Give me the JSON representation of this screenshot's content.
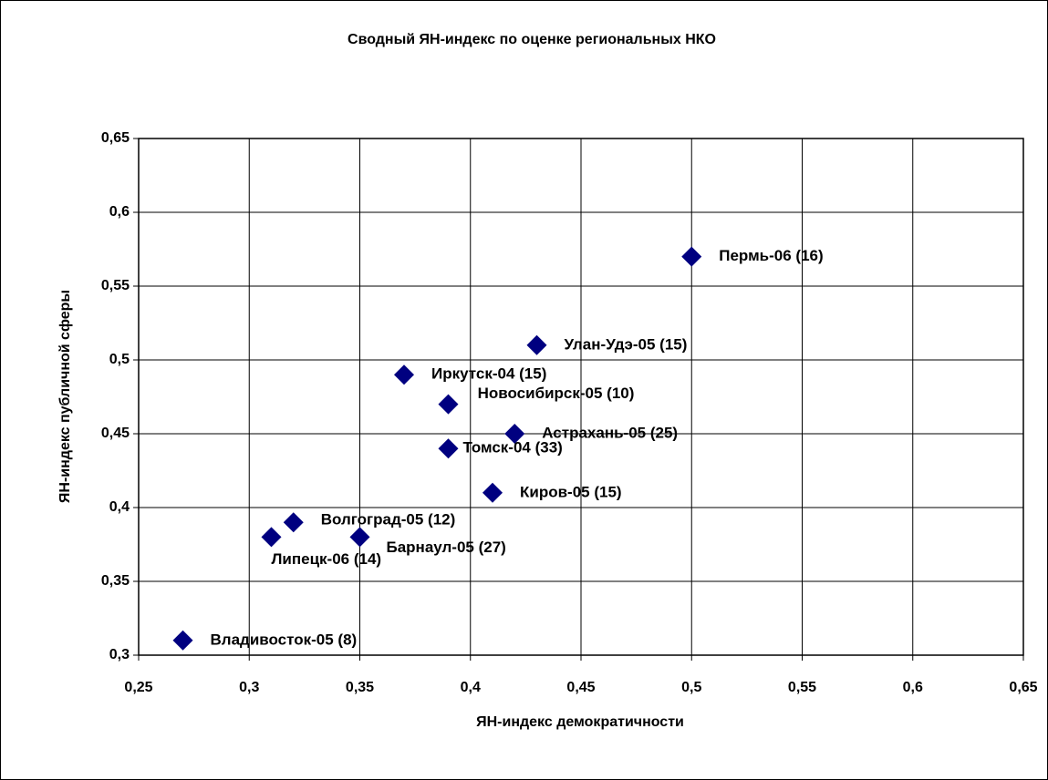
{
  "chart_data": {
    "type": "scatter",
    "title": "Сводный ЯН-индекс по оценке региональных НКО",
    "x_label": "ЯН-индекс демократичности",
    "y_label": "ЯН-индекс публичной сферы",
    "color": "#000080",
    "grid": true,
    "xlim": [
      0.25,
      0.65
    ],
    "ylim": [
      0.3,
      0.65
    ],
    "xticks": [
      {
        "value": 0.25,
        "label": "0,25"
      },
      {
        "value": 0.3,
        "label": "0,3"
      },
      {
        "value": 0.35,
        "label": "0,35"
      },
      {
        "value": 0.4,
        "label": "0,4"
      },
      {
        "value": 0.45,
        "label": "0,45"
      },
      {
        "value": 0.5,
        "label": "0,5"
      },
      {
        "value": 0.55,
        "label": "0,55"
      },
      {
        "value": 0.6,
        "label": "0,6"
      },
      {
        "value": 0.65,
        "label": "0,65"
      }
    ],
    "yticks": [
      {
        "value": 0.3,
        "label": "0,3"
      },
      {
        "value": 0.35,
        "label": "0,35"
      },
      {
        "value": 0.4,
        "label": "0,4"
      },
      {
        "value": 0.45,
        "label": "0,45"
      },
      {
        "value": 0.5,
        "label": "0,5"
      },
      {
        "value": 0.55,
        "label": "0,55"
      },
      {
        "value": 0.6,
        "label": "0,6"
      },
      {
        "value": 0.65,
        "label": "0,65"
      }
    ],
    "point_labels": [
      "Пермь-06 (16)",
      "Улан-Удэ-05 (15)",
      "Иркутск-04 (15)",
      "Новосибирск-05 (10)",
      "Астрахань-05 (25)",
      "Томск-04 (33)",
      "Киров-05 (15)",
      "Волгоград-05 (12)",
      "Барнаул-05 (27)",
      "Липецк-06 (14)",
      "Владивосток-05 (8)"
    ],
    "x": [
      0.5,
      0.43,
      0.37,
      0.39,
      0.42,
      0.39,
      0.41,
      0.32,
      0.35,
      0.31,
      0.27
    ],
    "y": [
      0.57,
      0.51,
      0.49,
      0.47,
      0.45,
      0.44,
      0.41,
      0.39,
      0.38,
      0.38,
      0.31
    ]
  }
}
